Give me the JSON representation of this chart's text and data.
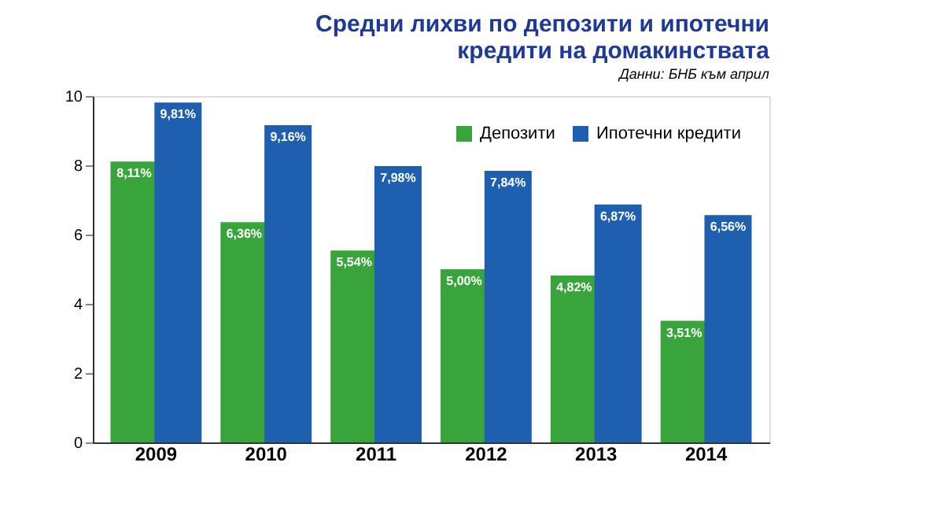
{
  "chart_data": {
    "type": "bar",
    "title": [
      "Средни лихви по депозити и ипотечни",
      "кредити на домакинствата"
    ],
    "annotations": [
      "Данни: БНБ към април"
    ],
    "categories": [
      "2009",
      "2010",
      "2011",
      "2012",
      "2013",
      "2014"
    ],
    "series": [
      {
        "name": "Депозити",
        "color": "#3aa43c",
        "values": [
          8.11,
          6.36,
          5.54,
          5.0,
          4.82,
          3.51
        ],
        "value_labels": [
          "8,11%",
          "6,36%",
          "5,54%",
          "5,00%",
          "4,82%",
          "3,51%"
        ]
      },
      {
        "name": "Ипотечни кредити",
        "color": "#1f5fb0",
        "values": [
          9.81,
          9.16,
          7.98,
          7.84,
          6.87,
          6.56
        ],
        "value_labels": [
          "9,81%",
          "9,16%",
          "7,98%",
          "7,84%",
          "6,87%",
          "6,56%"
        ]
      }
    ],
    "ylim": [
      0,
      10
    ],
    "yticks": [
      0,
      2,
      4,
      6,
      8,
      10
    ],
    "grid": false,
    "legend": "top right"
  }
}
